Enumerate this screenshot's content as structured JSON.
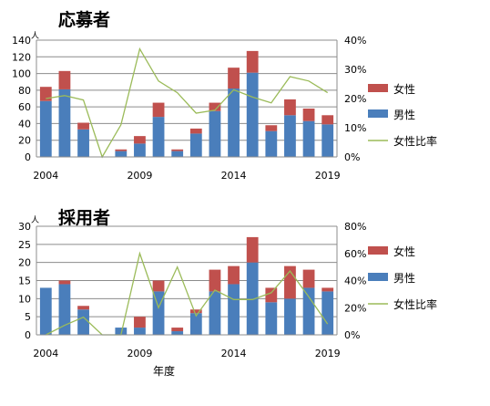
{
  "x_label": "年度",
  "chart_data": [
    {
      "type": "bar",
      "title": "応募者",
      "ylabel": "人",
      "categories": [
        2004,
        2005,
        2006,
        2007,
        2008,
        2009,
        2010,
        2011,
        2012,
        2013,
        2014,
        2015,
        2016,
        2017,
        2018,
        2019
      ],
      "x_tick_labels": [
        "2004",
        "2009",
        "2014",
        "2019"
      ],
      "ylim": [
        0,
        140
      ],
      "y_ticks": [
        "0",
        "20",
        "40",
        "60",
        "80",
        "100",
        "120",
        "140"
      ],
      "y2lim": [
        0,
        0.4
      ],
      "y2_ticks": [
        "0%",
        "10%",
        "20%",
        "30%",
        "40%"
      ],
      "series": [
        {
          "name": "男性",
          "color": "#4a7ebb",
          "values": [
            67,
            81,
            33,
            0,
            7,
            16,
            48,
            7,
            28,
            55,
            82,
            101,
            31,
            50,
            43,
            39
          ]
        },
        {
          "name": "女性",
          "color": "#c0504d",
          "values": [
            17,
            22,
            8,
            0,
            2,
            9,
            17,
            2,
            6,
            10,
            25,
            26,
            7,
            19,
            15,
            11
          ]
        },
        {
          "name": "女性比率",
          "color": "#9bbb59",
          "axis": "right",
          "values": [
            0.2,
            0.21,
            0.195,
            0.0,
            0.11,
            0.37,
            0.26,
            0.22,
            0.15,
            0.16,
            0.23,
            0.205,
            0.185,
            0.275,
            0.26,
            0.22
          ]
        }
      ],
      "legend": [
        "女性",
        "男性",
        "女性比率"
      ],
      "grid": true
    },
    {
      "type": "bar",
      "title": "採用者",
      "ylabel": "人",
      "categories": [
        2004,
        2005,
        2006,
        2007,
        2008,
        2009,
        2010,
        2011,
        2012,
        2013,
        2014,
        2015,
        2016,
        2017,
        2018,
        2019
      ],
      "x_tick_labels": [
        "2004",
        "2009",
        "2014",
        "2019"
      ],
      "ylim": [
        0,
        30
      ],
      "y_ticks": [
        "0",
        "5",
        "10",
        "15",
        "20",
        "25",
        "30"
      ],
      "y2lim": [
        0,
        0.8
      ],
      "y2_ticks": [
        "0%",
        "20%",
        "40%",
        "60%",
        "80%"
      ],
      "series": [
        {
          "name": "男性",
          "color": "#4a7ebb",
          "values": [
            13,
            14,
            7,
            0,
            2,
            2,
            12,
            1,
            6,
            12,
            14,
            20,
            9,
            10,
            13,
            12
          ]
        },
        {
          "name": "女性",
          "color": "#c0504d",
          "values": [
            0,
            1,
            1,
            0,
            0,
            3,
            3,
            1,
            1,
            6,
            5,
            7,
            4,
            9,
            5,
            1
          ]
        },
        {
          "name": "女性比率",
          "color": "#9bbb59",
          "axis": "right",
          "values": [
            0.0,
            0.07,
            0.13,
            0.0,
            0.0,
            0.6,
            0.2,
            0.5,
            0.14,
            0.33,
            0.26,
            0.26,
            0.31,
            0.47,
            0.28,
            0.08
          ]
        }
      ],
      "legend": [
        "女性",
        "男性",
        "女性比率"
      ],
      "grid": true
    }
  ]
}
